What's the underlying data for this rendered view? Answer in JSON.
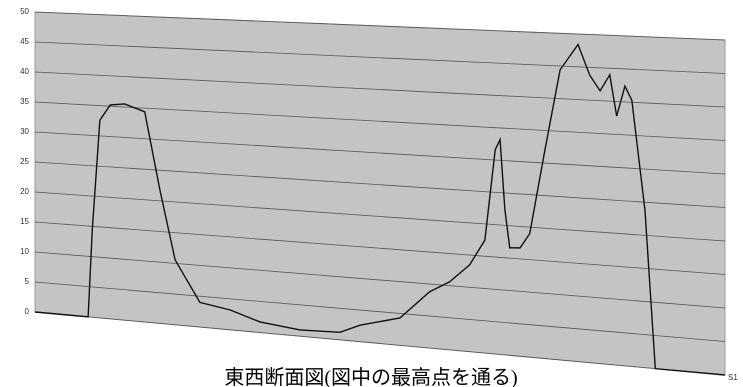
{
  "chart_data": {
    "type": "line",
    "title": "東西断面図(図中の最高点を通る)",
    "x_label": "S1",
    "x": [
      0,
      7.7,
      8.3,
      9.4,
      10.9,
      13.0,
      15.9,
      18.1,
      20.3,
      21.7,
      23.9,
      28.3,
      32.6,
      38.4,
      44.2,
      47.1,
      52.9,
      57.2,
      60.1,
      63.0,
      65.2,
      66.7,
      67.4,
      68.1,
      68.8,
      70.3,
      71.7,
      73.9,
      76.1,
      78.7,
      80.4,
      81.9,
      83.3,
      84.3,
      85.5,
      86.5,
      88.4,
      89.9,
      100
    ],
    "series": [
      {
        "color": "#111111",
        "values": [
          0,
          0,
          14.4,
          32.6,
          35.2,
          35.5,
          34.4,
          21.8,
          10.6,
          8,
          4,
          3.2,
          1.7,
          1.0,
          1.2,
          2.6,
          4.3,
          8.8,
          10.6,
          13.5,
          17.5,
          31.6,
          33.2,
          22.4,
          16.6,
          16.7,
          19,
          32,
          44.4,
          48.4,
          43.8,
          41.5,
          44,
          37.8,
          42.4,
          40.3,
          23.8,
          0,
          0
        ]
      }
    ],
    "xlim": [
      0,
      100
    ],
    "ylim": [
      0,
      50
    ],
    "yticks": [
      0,
      5,
      10,
      15,
      20,
      25,
      30,
      35,
      40,
      45,
      50
    ],
    "grid": true,
    "plot_color": "#c4c4c4"
  }
}
